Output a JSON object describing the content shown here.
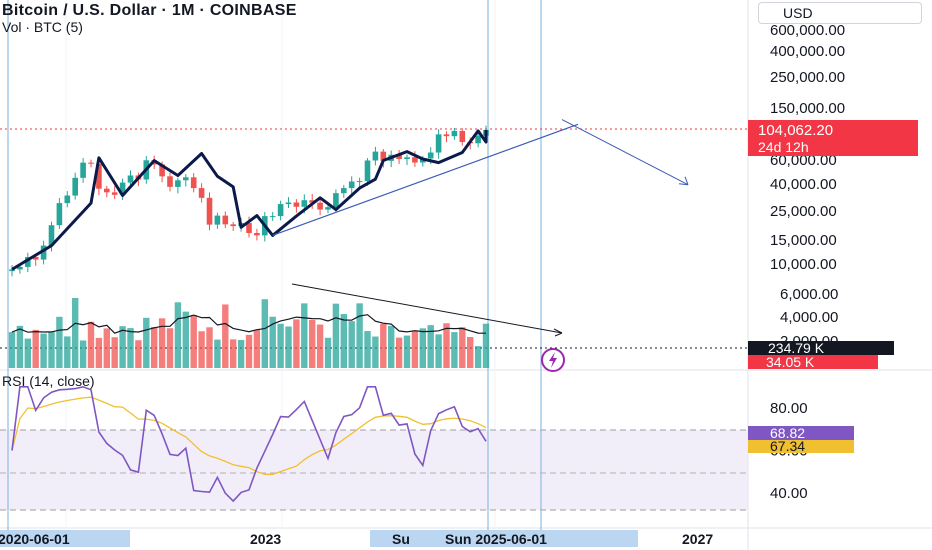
{
  "header": {
    "title": "Bitcoin / U.S. Dollar · 1M · COINBASE",
    "subtitle": "Vol · BTC (5)",
    "currency_button": "USD",
    "rsi_title": "RSI (14, close)"
  },
  "colors": {
    "up": "#26a69a",
    "down": "#ef5350",
    "trend_line": "#0b1a4a",
    "rsi_line": "#7e57c2",
    "rsi_ma": "#f0c030",
    "price_tag": "#f23645",
    "rsi_band": "#ede7f6",
    "cursor_line": "#90bde3"
  },
  "chart_data": [
    {
      "type": "candlestick",
      "title": "Bitcoin / U.S. Dollar · 1M · COINBASE",
      "y_scale": "log",
      "y_ticks": [
        "600,000.00",
        "400,000.00",
        "250,000.00",
        "150,000.00",
        "60,000.00",
        "40,000.00",
        "25,000.00",
        "15,000.00",
        "10,000.00"
      ],
      "y_tick_values": [
        600000,
        400000,
        250000,
        150000,
        60000,
        40000,
        25000,
        15000,
        10000
      ],
      "x_ticks": [
        "2020-06-01",
        "2023",
        "Su",
        "Sun 2025-06-01",
        "2027"
      ],
      "last_price": "104,062.20",
      "countdown": "24d 12h",
      "candles_close": [
        9100,
        9500,
        11300,
        10800,
        13800,
        19700,
        29000,
        33100,
        45100,
        58800,
        57700,
        37300,
        35000,
        33500,
        41500,
        47000,
        43800,
        61300,
        57000,
        46300,
        38500,
        43200,
        45500,
        37700,
        31800,
        19900,
        23300,
        20000,
        19400,
        20500,
        17200,
        16500,
        23100,
        23100,
        28500,
        29300,
        27200,
        30500,
        29200,
        25900,
        27000,
        34500,
        37700,
        42300,
        42600,
        61100,
        71300,
        60700,
        67500,
        62700,
        64600,
        58900,
        63300,
        70200,
        96400,
        93400,
        102400,
        84300,
        82500,
        94200,
        104100
      ],
      "pattern_zigzag": [
        9100,
        13800,
        29000,
        64000,
        33100,
        61000,
        47000,
        69000,
        46300,
        38500,
        19000,
        23300,
        16500,
        23100,
        31800,
        25900,
        37700,
        44000,
        61100,
        71300,
        62700,
        58900,
        70200,
        102400,
        84300,
        104100
      ],
      "trendline_target": 40000
    },
    {
      "type": "bar",
      "title": "Vol · BTC (5)",
      "y_ticks": [
        "6,000.00",
        "4,000.00",
        "2,000.00"
      ],
      "y_tick_values": [
        6000,
        4000,
        2000
      ],
      "current_volume": "234.79 K",
      "volume_ma": "34.05 K"
    },
    {
      "type": "line",
      "title": "RSI (14, close)",
      "y_ticks": [
        "80.00",
        "60.00",
        "40.00"
      ],
      "y_tick_values": [
        80,
        60,
        40
      ],
      "band": [
        70,
        30
      ],
      "rsi_value": "68.82",
      "rsi_ma_value": "67.34"
    }
  ]
}
